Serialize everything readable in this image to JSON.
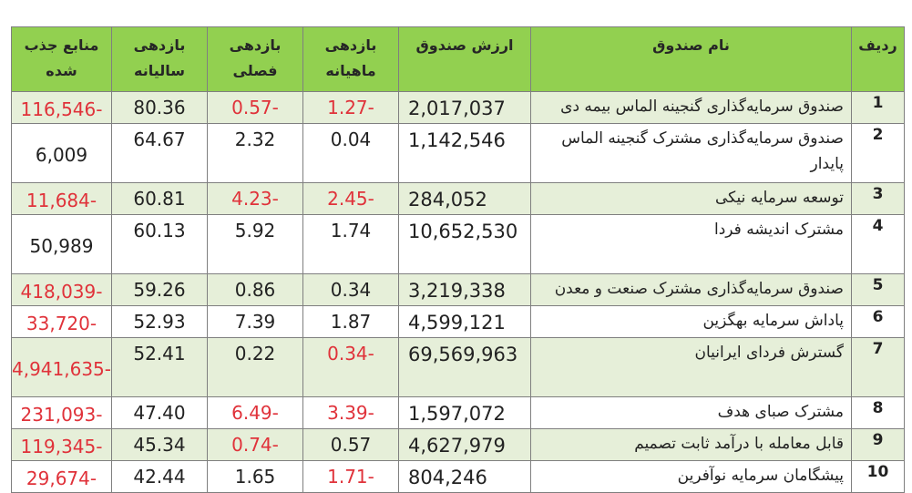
{
  "headers": {
    "rank": "ردیف",
    "name": "نام صندوق",
    "value": "ارزش صندوق",
    "monthly": "بازدهی ماهیانه",
    "quarterly": "بازدهی فصلی",
    "annual": "بازدهی سالیانه",
    "inflow": "منابع جذب شده"
  },
  "rows": [
    {
      "rank": "1",
      "name": "صندوق سرمایه‌گذاری گنجینه الماس بیمه دی",
      "value": "2,017,037",
      "monthly": "-1.27",
      "quarterly": "-0.57",
      "annual": "80.36",
      "inflow": "-116,546"
    },
    {
      "rank": "2",
      "name": "صندوق سرمایه‌گذاری مشترک گنجینه الماس پایدار",
      "value": "1,142,546",
      "monthly": "0.04",
      "quarterly": "2.32",
      "annual": "64.67",
      "inflow": "6,009"
    },
    {
      "rank": "3",
      "name": "توسعه سرمایه نیکی",
      "value": "284,052",
      "monthly": "-2.45",
      "quarterly": "-4.23",
      "annual": "60.81",
      "inflow": "-11,684"
    },
    {
      "rank": "4",
      "name": "مشترک اندیشه فردا",
      "value": "10,652,530",
      "monthly": "1.74",
      "quarterly": "5.92",
      "annual": "60.13",
      "inflow": "50,989"
    },
    {
      "rank": "5",
      "name": "صندوق سرمایه‌گذاری مشترک صنعت و معدن",
      "value": "3,219,338",
      "monthly": "0.34",
      "quarterly": "0.86",
      "annual": "59.26",
      "inflow": "-418,039"
    },
    {
      "rank": "6",
      "name": "پاداش سرمایه بهگزین",
      "value": "4,599,121",
      "monthly": "1.87",
      "quarterly": "7.39",
      "annual": "52.93",
      "inflow": "-33,720"
    },
    {
      "rank": "7",
      "name": "گسترش فردای ایرانیان",
      "value": "69,569,963",
      "monthly": "-0.34",
      "quarterly": "0.22",
      "annual": "52.41",
      "inflow": "-4,941,635"
    },
    {
      "rank": "8",
      "name": "مشترک صبای هدف",
      "value": "1,597,072",
      "monthly": "-3.39",
      "quarterly": "-6.49",
      "annual": "47.40",
      "inflow": "-231,093"
    },
    {
      "rank": "9",
      "name": "قابل معامله با درآمد ثابت تصمیم",
      "value": "4,627,979",
      "monthly": "0.57",
      "quarterly": "-0.74",
      "annual": "45.34",
      "inflow": "-119,345"
    },
    {
      "rank": "10",
      "name": "پیشگامان سرمایه نوآفرین",
      "value": "804,246",
      "monthly": "-1.71",
      "quarterly": "1.65",
      "annual": "42.44",
      "inflow": "-29,674"
    }
  ]
}
